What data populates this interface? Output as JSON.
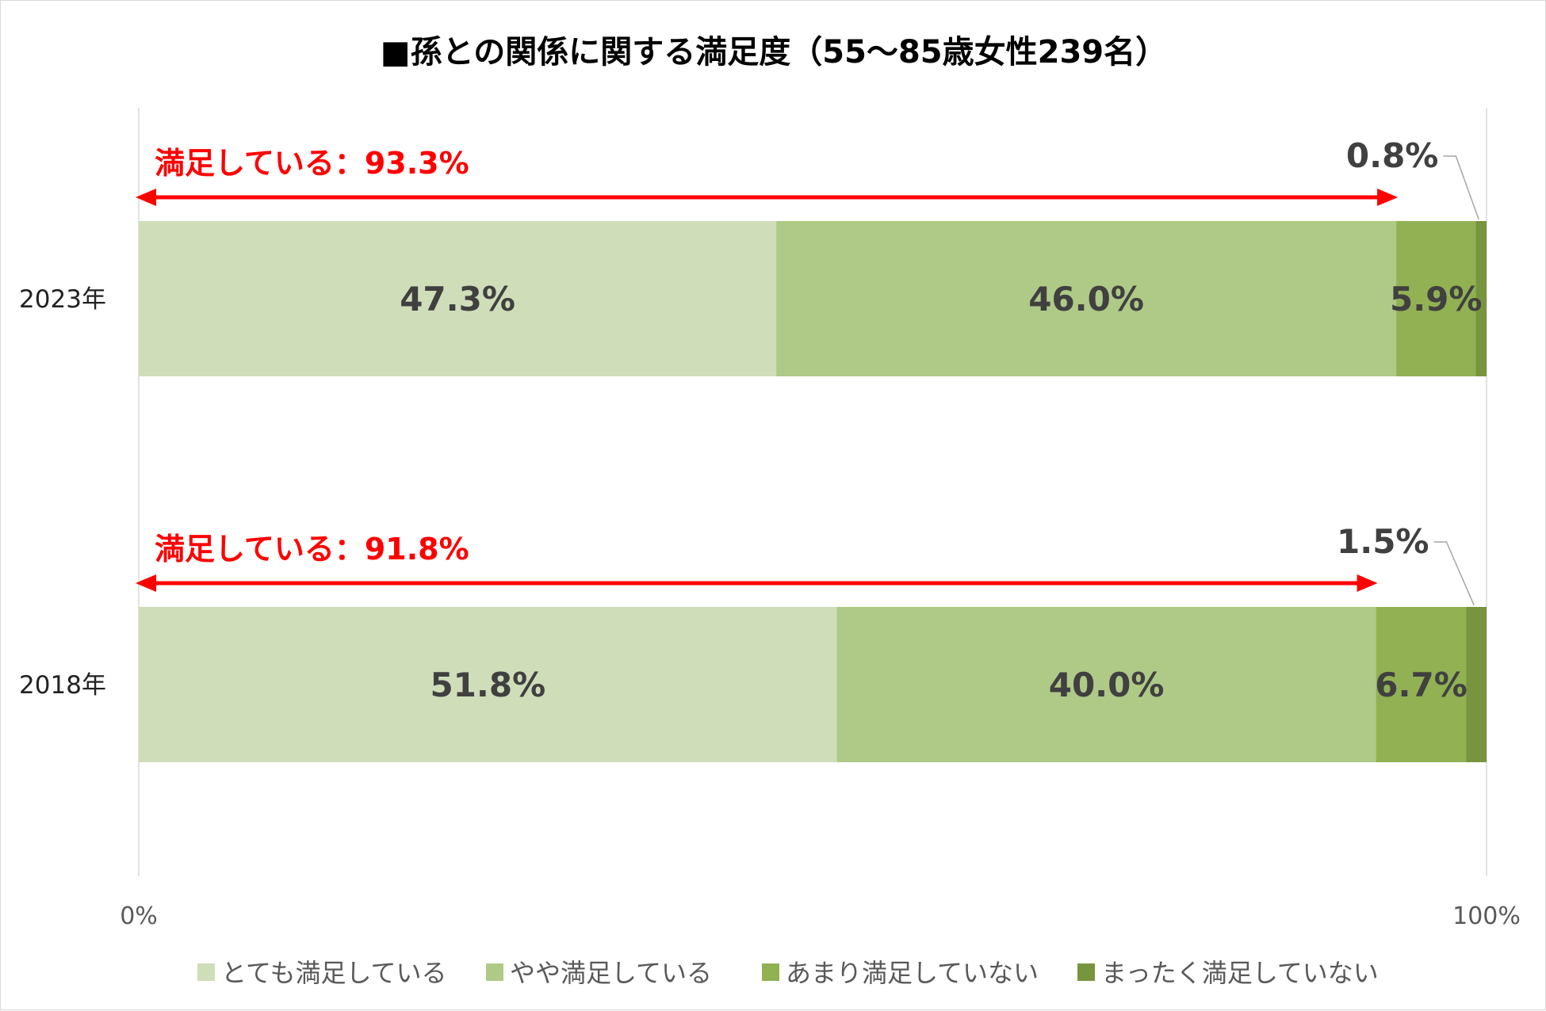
{
  "chart_data": {
    "type": "bar",
    "orientation": "horizontal",
    "stacked": "percent",
    "title": "■孫との関係に関する満足度（55～85歳女性239名）",
    "categories": [
      "2023年",
      "2018年"
    ],
    "series": [
      {
        "name": "とても満足している",
        "values": [
          47.3,
          51.8
        ],
        "color": "#cfddb9"
      },
      {
        "name": "やや満足している",
        "values": [
          46.0,
          40.0
        ],
        "color": "#afc987"
      },
      {
        "name": "あまり満足していない",
        "values": [
          5.9,
          6.7
        ],
        "color": "#91b153"
      },
      {
        "name": "まったく満足していない",
        "values": [
          0.8,
          1.5
        ],
        "color": "#78943e"
      }
    ],
    "data_labels": [
      [
        "47.3%",
        "46.0%",
        "5.9%",
        "0.8%"
      ],
      [
        "51.8%",
        "40.0%",
        "6.7%",
        "1.5%"
      ]
    ],
    "annotations": [
      {
        "category": "2023年",
        "text": "満足している：93.3%",
        "value": 93.3,
        "color": "#ff0000"
      },
      {
        "category": "2018年",
        "text": "満足している：91.8%",
        "value": 91.8,
        "color": "#ff0000"
      }
    ],
    "x_ticks": [
      "0%",
      "100%"
    ],
    "xlim": [
      0,
      100
    ],
    "legend_position": "bottom",
    "grid": false
  }
}
